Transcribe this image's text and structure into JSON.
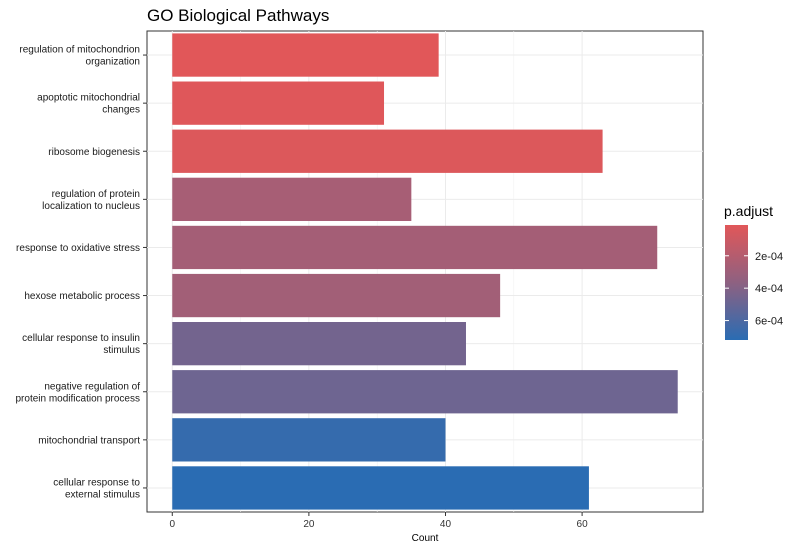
{
  "chart_data": {
    "type": "bar",
    "orientation": "horizontal",
    "title": "GO Biological Pathways",
    "xlabel": "Count",
    "ylabel": "",
    "xlim": [
      -3.7,
      77.7
    ],
    "xticks": [
      0,
      20,
      40,
      60
    ],
    "grid": true,
    "legend_position": "right",
    "categories": [
      [
        "regulation of mitochondrion",
        "organization"
      ],
      [
        "apoptotic mitochondrial",
        "changes"
      ],
      [
        "ribosome biogenesis"
      ],
      [
        "regulation of protein",
        "localization to nucleus"
      ],
      [
        "response to oxidative stress"
      ],
      [
        "hexose metabolic process"
      ],
      [
        "cellular response to insulin",
        "stimulus"
      ],
      [
        "negative regulation of",
        "protein modification process"
      ],
      [
        "mitochondrial transport"
      ],
      [
        "cellular response to",
        "external stimulus"
      ]
    ],
    "values": [
      39,
      31,
      63,
      35,
      71,
      48,
      43,
      74,
      40,
      61
    ],
    "p_adjust": [
      1e-05,
      2e-05,
      3e-05,
      0.00026,
      0.00027,
      0.00028,
      0.00046,
      0.00048,
      0.00068,
      0.00072
    ],
    "color_scale": {
      "name": "p.adjust",
      "low_color": "#e15759",
      "mid_color": "#8e6181",
      "high_color": "#2a6cb3",
      "range": [
        1e-05,
        0.00072
      ],
      "ticks": [
        0.0002,
        0.0004,
        0.0006
      ],
      "tick_labels": [
        "2e-04",
        "4e-04",
        "6e-04"
      ]
    }
  }
}
